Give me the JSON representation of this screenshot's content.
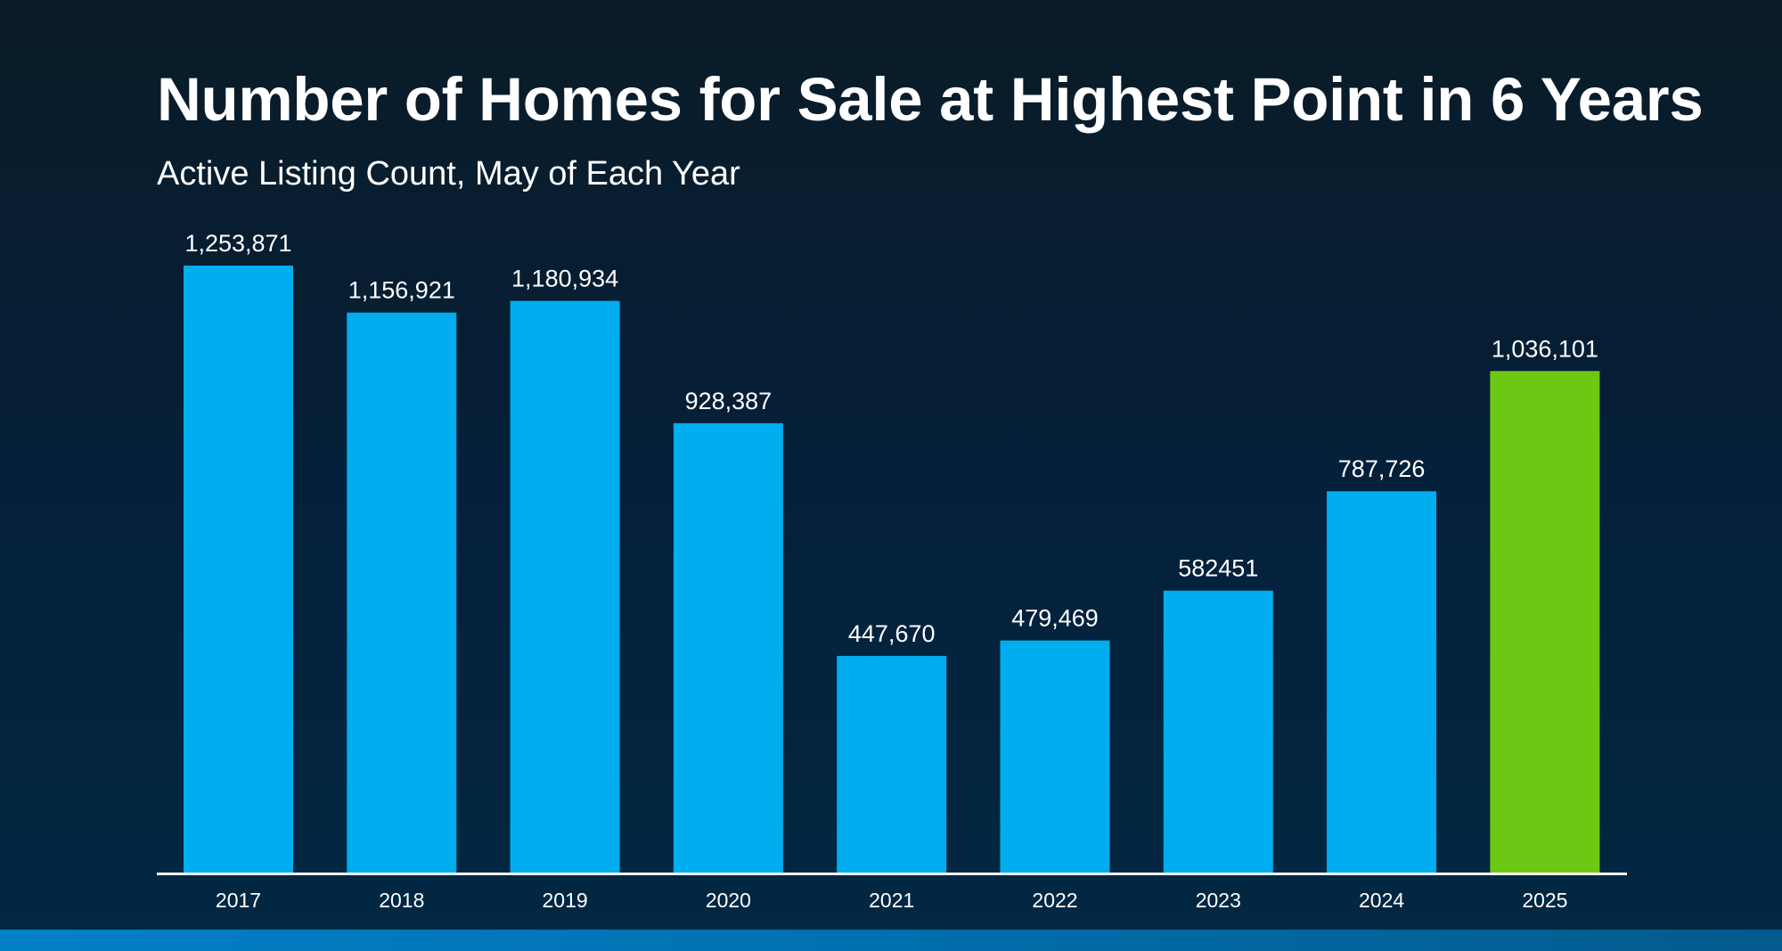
{
  "header": {
    "title": "Number of Homes for Sale at Highest Point in 6 Years",
    "subtitle": "Active Listing Count, May of Each Year"
  },
  "colors": {
    "bar_default": "#00adee",
    "bar_highlight": "#6cc913",
    "axis_line": "#ffffff",
    "label_text": "#ffffff"
  },
  "chart_data": {
    "type": "bar",
    "title": "Number of Homes for Sale at Highest Point in 6 Years",
    "subtitle": "Active Listing Count, May of Each Year",
    "xlabel": "",
    "ylabel": "",
    "categories": [
      "2017",
      "2018",
      "2019",
      "2020",
      "2021",
      "2022",
      "2023",
      "2024",
      "2025"
    ],
    "values": [
      1253871,
      1156921,
      1180934,
      928387,
      447670,
      479469,
      582451,
      787726,
      1036101
    ],
    "data_labels": [
      "1,253,871",
      "1,156,921",
      "1,180,934",
      "928,387",
      "447,670",
      "479,469",
      "582451",
      "787,726",
      "1,036,101"
    ],
    "highlight_category": "2025",
    "ylim": [
      0,
      1253871
    ],
    "grid": false,
    "legend": "none"
  }
}
